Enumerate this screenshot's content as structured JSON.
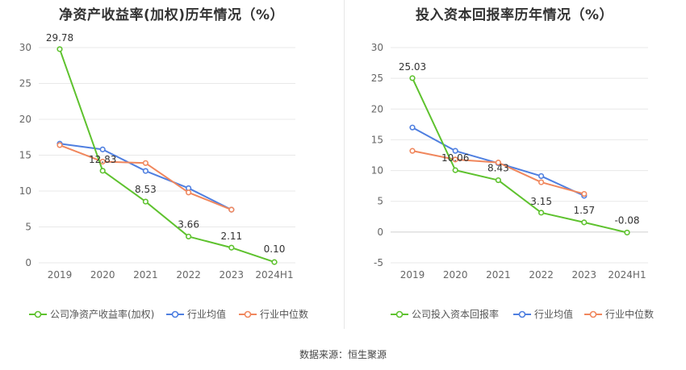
{
  "source_text": "数据来源：恒生聚源",
  "colors": {
    "company": "#5ec22e",
    "industry_avg": "#4f7fe0",
    "industry_median": "#f0875d",
    "grid": "#e8e8e8",
    "axis_text": "#666666"
  },
  "chart_data": [
    {
      "type": "line",
      "title": "净资产收益率(加权)历年情况（%）",
      "categories": [
        "2019",
        "2020",
        "2021",
        "2022",
        "2023",
        "2024H1"
      ],
      "yticks": [
        0,
        5,
        10,
        15,
        20,
        25,
        30
      ],
      "ylim": [
        0,
        30
      ],
      "legend_position": "bottom",
      "series": [
        {
          "name": "公司净资产收益率(加权)",
          "color": "#5ec22e",
          "values": [
            29.78,
            12.83,
            8.53,
            3.66,
            2.11,
            0.1
          ],
          "labels": [
            "29.78",
            "12.83",
            "8.53",
            "3.66",
            "2.11",
            "0.10"
          ]
        },
        {
          "name": "行业均值",
          "color": "#4f7fe0",
          "values": [
            16.6,
            15.8,
            12.8,
            10.4,
            7.4,
            null
          ]
        },
        {
          "name": "行业中位数",
          "color": "#f0875d",
          "values": [
            16.4,
            14.1,
            13.9,
            9.8,
            7.4,
            null
          ]
        }
      ]
    },
    {
      "type": "line",
      "title": "投入资本回报率历年情况（%）",
      "categories": [
        "2019",
        "2020",
        "2021",
        "2022",
        "2023",
        "2024H1"
      ],
      "yticks": [
        -5,
        0,
        5,
        10,
        15,
        20,
        25,
        30
      ],
      "ylim": [
        -5,
        30
      ],
      "legend_position": "bottom",
      "series": [
        {
          "name": "公司投入资本回报率",
          "color": "#5ec22e",
          "values": [
            25.03,
            10.06,
            8.43,
            3.15,
            1.57,
            -0.08
          ],
          "labels": [
            "25.03",
            "10.06",
            "8.43",
            "3.15",
            "1.57",
            "-0.08"
          ]
        },
        {
          "name": "行业均值",
          "color": "#4f7fe0",
          "values": [
            17.0,
            13.2,
            11.2,
            9.1,
            5.9,
            null
          ]
        },
        {
          "name": "行业中位数",
          "color": "#f0875d",
          "values": [
            13.2,
            11.8,
            11.3,
            8.1,
            6.2,
            null
          ]
        }
      ]
    }
  ]
}
